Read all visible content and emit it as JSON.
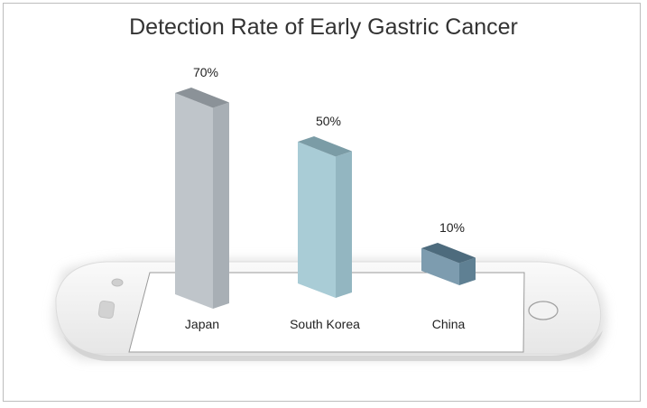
{
  "chart_data": {
    "type": "bar",
    "title": "Detection Rate of Early Gastric Cancer",
    "categories": [
      "Japan",
      "South Korea",
      "China"
    ],
    "values": [
      70,
      50,
      10
    ],
    "value_labels": [
      "70%",
      "50%",
      "10%"
    ],
    "xlabel": "",
    "ylabel": "",
    "ylim": [
      0,
      70
    ],
    "grid": false,
    "legend": "none",
    "colors": [
      {
        "front": "#bfc5ca",
        "side": "#a8afb5",
        "top": "#8b9298"
      },
      {
        "front": "#a9ccd6",
        "side": "#93b6c1",
        "top": "#7b9ca6"
      },
      {
        "front": "#7d9caf",
        "side": "#5f8093",
        "top": "#4d6b7d"
      }
    ]
  },
  "decor": {
    "phone_body": "#f1f1f1",
    "phone_edge": "#d8d8d8",
    "screen_border": "#9a9a9a"
  }
}
